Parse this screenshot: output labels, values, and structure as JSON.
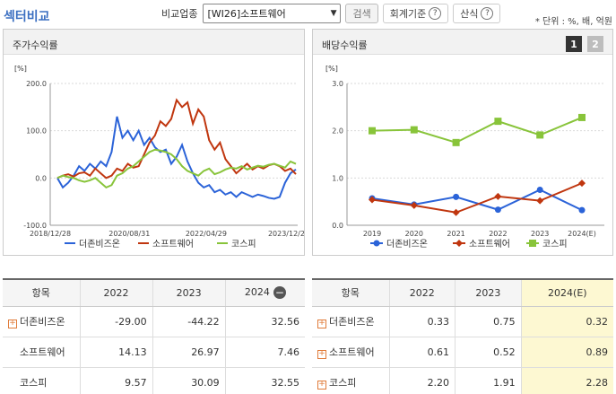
{
  "page": {
    "title": "섹터비교",
    "compare_label": "비교업종",
    "compare_value": "[WI26]소프트웨어",
    "search_label": "검색",
    "accounting_label": "회계기준",
    "calc_label": "산식",
    "unit_note": "* 단위 : %, 배, 억원"
  },
  "colors": {
    "blue": "#2b63d8",
    "red": "#c0360f",
    "green": "#88c43a",
    "accent": "#3b6fc1"
  },
  "left_panel": {
    "title": "주가수익률",
    "unit": "[%]",
    "yticks": [
      "200.0",
      "100.0",
      "0.0",
      "-100.0"
    ],
    "xticks": [
      "2018/12/28",
      "2020/08/31",
      "2022/04/29",
      "2023/12/28"
    ],
    "legend": [
      "더존비즈온",
      "소프트웨어",
      "코스피"
    ]
  },
  "right_panel": {
    "title": "배당수익률",
    "unit": "[%]",
    "tab1": "1",
    "tab2": "2",
    "yticks": [
      "3.0",
      "2.0",
      "1.0",
      "0.0"
    ],
    "xticks": [
      "2019",
      "2020",
      "2021",
      "2022",
      "2023",
      "2024(E)"
    ],
    "legend": [
      "더존비즈온",
      "소프트웨어",
      "코스피"
    ]
  },
  "chart_data": [
    {
      "type": "line",
      "title": "주가수익률",
      "ylabel": "[%]",
      "ylim": [
        -100,
        200
      ],
      "xlabels": [
        "2018/12/28",
        "2020/08/31",
        "2022/04/29",
        "2023/12/28"
      ],
      "grid": true,
      "legend_position": "bottom",
      "series": [
        {
          "name": "더존비즈온",
          "color": "#2b63d8",
          "values": [
            0,
            -20,
            -10,
            5,
            25,
            15,
            30,
            20,
            35,
            25,
            55,
            130,
            85,
            100,
            80,
            100,
            70,
            85,
            65,
            55,
            60,
            30,
            45,
            70,
            35,
            10,
            -10,
            -20,
            -15,
            -30,
            -25,
            -35,
            -30,
            -40,
            -30,
            -35,
            -40,
            -35,
            -38,
            -42,
            -44,
            -40,
            -10,
            10,
            18
          ]
        },
        {
          "name": "소프트웨어",
          "color": "#c0360f",
          "values": [
            0,
            5,
            8,
            3,
            10,
            12,
            5,
            20,
            10,
            0,
            5,
            20,
            15,
            30,
            22,
            25,
            50,
            75,
            90,
            120,
            110,
            125,
            165,
            150,
            160,
            115,
            145,
            130,
            80,
            60,
            75,
            40,
            25,
            10,
            20,
            30,
            18,
            25,
            20,
            27,
            30,
            25,
            15,
            20,
            8
          ]
        },
        {
          "name": "코스피",
          "color": "#88c43a",
          "values": [
            0,
            5,
            2,
            0,
            -5,
            -8,
            -5,
            0,
            -10,
            -20,
            -15,
            5,
            10,
            20,
            25,
            35,
            45,
            55,
            60,
            58,
            55,
            50,
            40,
            25,
            15,
            10,
            5,
            15,
            20,
            8,
            12,
            18,
            22,
            20,
            25,
            18,
            22,
            26,
            24,
            28,
            30,
            26,
            22,
            35,
            30
          ]
        }
      ]
    },
    {
      "type": "line",
      "title": "배당수익률",
      "ylabel": "[%]",
      "ylim": [
        0,
        3
      ],
      "categories": [
        "2019",
        "2020",
        "2021",
        "2022",
        "2023",
        "2024(E)"
      ],
      "grid": true,
      "legend_position": "bottom",
      "series": [
        {
          "name": "더존비즈온",
          "color": "#2b63d8",
          "marker": "circle",
          "values": [
            0.57,
            0.44,
            0.6,
            0.33,
            0.75,
            0.32
          ]
        },
        {
          "name": "소프트웨어",
          "color": "#c0360f",
          "marker": "diamond",
          "values": [
            0.54,
            0.42,
            0.27,
            0.61,
            0.52,
            0.89
          ]
        },
        {
          "name": "코스피",
          "color": "#88c43a",
          "marker": "square",
          "values": [
            2.0,
            2.02,
            1.75,
            2.2,
            1.91,
            2.28
          ]
        }
      ]
    }
  ],
  "left_table": {
    "headers": [
      "항목",
      "2022",
      "2023",
      "2024"
    ],
    "rows": [
      {
        "name": "더존비즈온",
        "expand": true,
        "values": [
          "-29.00",
          "-44.22",
          "32.56"
        ]
      },
      {
        "name": "소프트웨어",
        "expand": false,
        "values": [
          "14.13",
          "26.97",
          "7.46"
        ]
      },
      {
        "name": "코스피",
        "expand": false,
        "values": [
          "9.57",
          "30.09",
          "32.55"
        ]
      }
    ]
  },
  "right_table": {
    "headers": [
      "항목",
      "2022",
      "2023",
      "2024(E)"
    ],
    "rows": [
      {
        "name": "더존비즈온",
        "expand": true,
        "values": [
          "0.33",
          "0.75",
          "0.32"
        ]
      },
      {
        "name": "소프트웨어",
        "expand": true,
        "values": [
          "0.61",
          "0.52",
          "0.89"
        ]
      },
      {
        "name": "코스피",
        "expand": true,
        "values": [
          "2.20",
          "1.91",
          "2.28"
        ]
      }
    ]
  }
}
